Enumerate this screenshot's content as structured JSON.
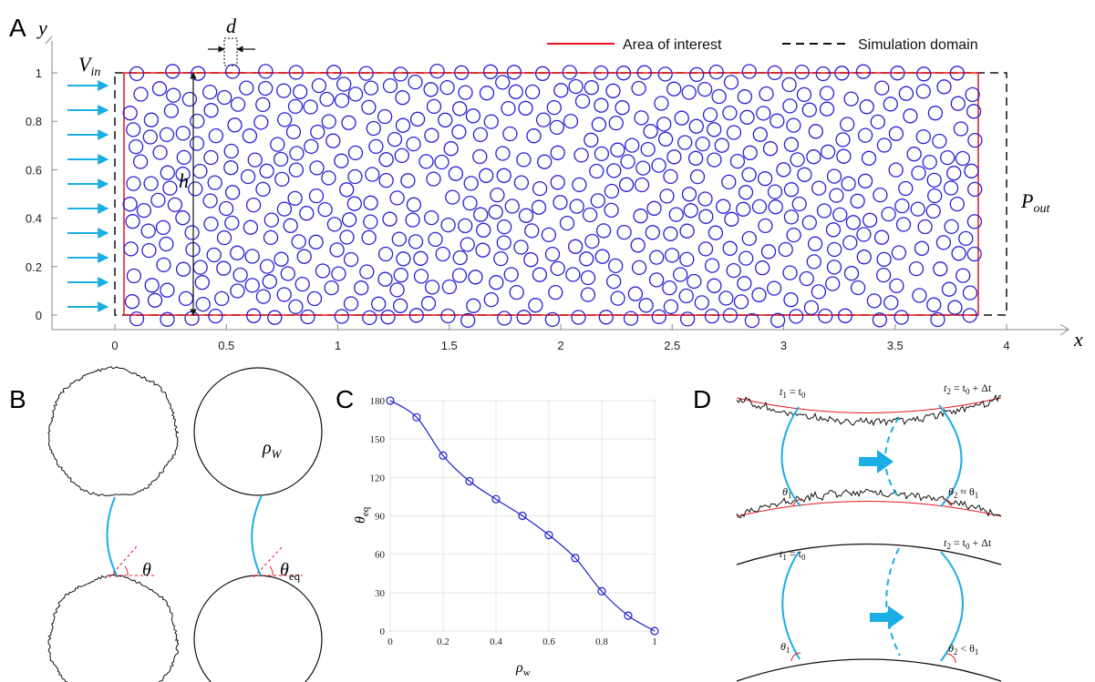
{
  "panels": {
    "a": {
      "letter": "A",
      "x_axis_symbol": "x",
      "y_axis_symbol": "y",
      "inlet_label": "V",
      "inlet_sub": "in",
      "outlet_label": "P",
      "outlet_sub": "out",
      "gap_label": "d",
      "height_label": "h",
      "legend": [
        {
          "label": "Area of interest",
          "color": "#e8141c",
          "style": "solid"
        },
        {
          "label": "Simulation domain",
          "color": "#000000",
          "style": "dashed"
        }
      ],
      "x_ticks": [
        "0",
        "0.5",
        "1",
        "1.5",
        "2",
        "2.5",
        "3",
        "3.5",
        "4"
      ],
      "y_ticks": [
        "0",
        "0.2",
        "0.4",
        "0.6",
        "0.8",
        "1"
      ],
      "grain_color": "#2a1fd6",
      "arrow_color": "#19aee6"
    },
    "b": {
      "letter": "B",
      "angle_rough": "θ",
      "wettability": "ρ",
      "wettability_sub": "W",
      "angle_smooth": "θ",
      "angle_smooth_sub": "eq"
    },
    "c": {
      "letter": "C"
    },
    "d": {
      "letter": "D",
      "t1": "t",
      "t1_sub": "1",
      "t1_rhs": " = t",
      "t1_rhs_sub": "0",
      "t2": "t",
      "t2_sub": "2",
      "t2_rhs": " = t",
      "t2_rhs_sub": "0",
      "t2_tail": " + Δt",
      "theta1": "θ",
      "theta1_sub": "1",
      "theta2_rough": "θ",
      "theta2_rough_sub": "2",
      "theta2_rough_rel": " ≈ θ",
      "theta2_rough_rel_sub": "1",
      "theta2_smooth": "θ",
      "theta2_smooth_sub": "2",
      "theta2_smooth_rel": " < θ",
      "theta2_smooth_rel_sub": "1"
    }
  },
  "chart_data": {
    "type": "line",
    "x": [
      0,
      0.1,
      0.2,
      0.3,
      0.4,
      0.5,
      0.6,
      0.7,
      0.8,
      0.9,
      1
    ],
    "values": [
      180,
      167,
      137,
      117,
      103,
      90,
      75,
      57,
      31,
      12,
      0
    ],
    "xlabel": "ρ",
    "xlabel_sub": "w",
    "ylabel": "θ",
    "ylabel_sub": "eq",
    "xlim": [
      0,
      1
    ],
    "ylim": [
      0,
      180
    ],
    "x_ticks": [
      "0",
      "0.2",
      "0.4",
      "0.6",
      "0.8",
      "1"
    ],
    "y_ticks": [
      "0",
      "30",
      "60",
      "90",
      "120",
      "150",
      "180"
    ],
    "grid": true,
    "marker": "circle",
    "color": "#1f1fd0"
  }
}
